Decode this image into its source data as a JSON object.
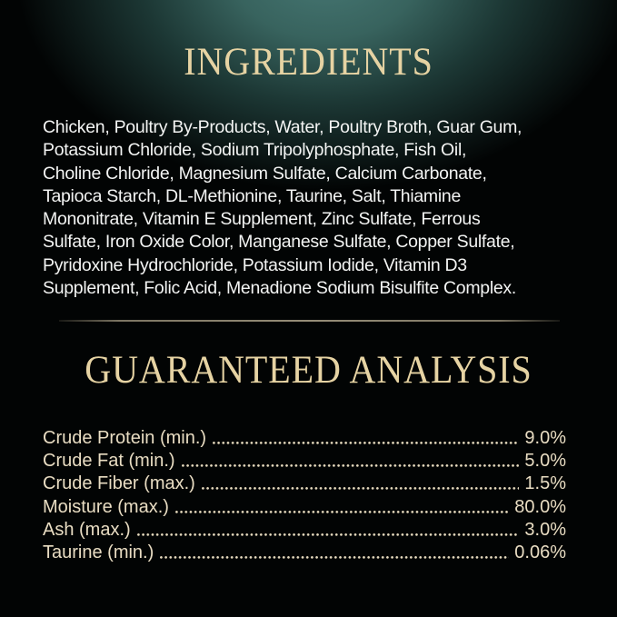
{
  "colors": {
    "background_black": "#020404",
    "background_teal_glow": "#467773",
    "heading_gold": "#e6d3a3",
    "analysis_cream": "#e8dcc2",
    "ingredients_white": "#f3f4f3",
    "divider_tan": "#a59b82"
  },
  "ingredients": {
    "title": "INGREDIENTS",
    "lines": [
      "Chicken, Poultry By-Products, Water, Poultry Broth, Guar Gum,",
      "Potassium Chloride, Sodium Tripolyphosphate, Fish Oil,",
      "Choline Chloride, Magnesium Sulfate, Calcium Carbonate,",
      "Tapioca Starch, DL-Methionine, Taurine, Salt, Thiamine",
      "Mononitrate, Vitamin E Supplement, Zinc Sulfate, Ferrous",
      "Sulfate, Iron Oxide Color, Manganese Sulfate, Copper Sulfate,",
      "Pyridoxine Hydrochloride, Potassium Iodide, Vitamin D3",
      "Supplement, Folic Acid, Menadione Sodium Bisulfite Complex."
    ],
    "full_text": "Chicken, Poultry By-Products, Water, Poultry Broth, Guar Gum, Potassium Chloride, Sodium Tripolyphosphate, Fish Oil, Choline Chloride, Magnesium Sulfate, Calcium Carbonate, Tapioca Starch, DL-Methionine, Taurine, Salt, Thiamine Mononitrate, Vitamin E Supplement, Zinc Sulfate, Ferrous Sulfate, Iron Oxide Color, Manganese Sulfate, Copper Sulfate, Pyridoxine Hydrochloride, Potassium Iodide, Vitamin D3 Supplement, Folic Acid, Menadione Sodium Bisulfite Complex."
  },
  "guaranteed_analysis": {
    "title": "GUARANTEED ANALYSIS",
    "rows": [
      {
        "label": "Crude Protein (min.)",
        "value": "9.0%"
      },
      {
        "label": "Crude Fat (min.)",
        "value": "5.0%"
      },
      {
        "label": "Crude Fiber (max.)",
        "value": "1.5%"
      },
      {
        "label": "Moisture (max.)",
        "value": "80.0%"
      },
      {
        "label": "Ash (max.)",
        "value": "3.0%"
      },
      {
        "label": "Taurine (min.)",
        "value": "0.06%"
      }
    ]
  }
}
